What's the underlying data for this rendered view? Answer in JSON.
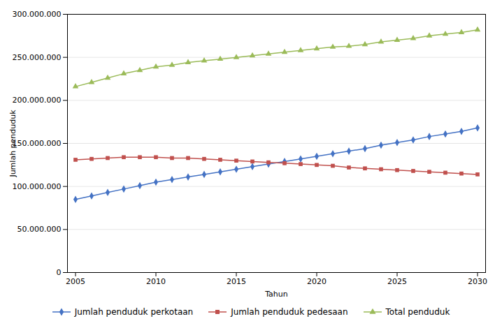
{
  "chart_data": {
    "type": "line",
    "xlabel": "Tahun",
    "ylabel": "Jumlah penduduk",
    "x": [
      2005,
      2006,
      2007,
      2008,
      2009,
      2010,
      2011,
      2012,
      2013,
      2014,
      2015,
      2016,
      2017,
      2018,
      2019,
      2020,
      2021,
      2022,
      2023,
      2024,
      2025,
      2026,
      2027,
      2028,
      2029,
      2030
    ],
    "series": [
      {
        "name": "Jumlah penduduk perkotaan",
        "color": "#4472C4",
        "marker": "diamond",
        "values": [
          85000000,
          89000000,
          93000000,
          97000000,
          101000000,
          105000000,
          108000000,
          111000000,
          114000000,
          117000000,
          120000000,
          123000000,
          126000000,
          129000000,
          132000000,
          135000000,
          138000000,
          141000000,
          144000000,
          148000000,
          151000000,
          154000000,
          158000000,
          161000000,
          164000000,
          168000000
        ]
      },
      {
        "name": "Jumlah penduduk pedesaan",
        "color": "#C0504D",
        "marker": "square",
        "values": [
          131000000,
          132000000,
          133000000,
          134000000,
          134000000,
          134000000,
          133000000,
          133000000,
          132000000,
          131000000,
          130000000,
          129000000,
          128000000,
          127000000,
          126000000,
          125000000,
          124000000,
          122000000,
          121000000,
          120000000,
          119000000,
          118000000,
          117000000,
          116000000,
          115000000,
          114000000
        ]
      },
      {
        "name": "Total penduduk",
        "color": "#9BBB59",
        "marker": "triangle",
        "values": [
          216000000,
          221000000,
          226000000,
          231000000,
          235000000,
          239000000,
          241000000,
          244000000,
          246000000,
          248000000,
          250000000,
          252000000,
          254000000,
          256000000,
          258000000,
          260000000,
          262000000,
          263000000,
          265000000,
          268000000,
          270000000,
          272000000,
          275000000,
          277000000,
          279000000,
          282000000
        ]
      }
    ],
    "xlim": [
      2004.5,
      2030.5
    ],
    "xticks": [
      2005,
      2010,
      2015,
      2020,
      2025,
      2030
    ],
    "ylim": [
      0,
      300000000
    ],
    "yticks": [
      0,
      {
        "value": 50000000,
        "label": "50.000.000"
      },
      {
        "value": 100000000,
        "label": "100.000.000"
      },
      {
        "value": 150000000,
        "label": "150.000.000"
      },
      {
        "value": 200000000,
        "label": "200.000.000"
      },
      {
        "value": 250000000,
        "label": "250.000.000"
      },
      {
        "value": 300000000,
        "label": "300.000.000"
      }
    ],
    "grid": true,
    "legend": "bottom"
  }
}
